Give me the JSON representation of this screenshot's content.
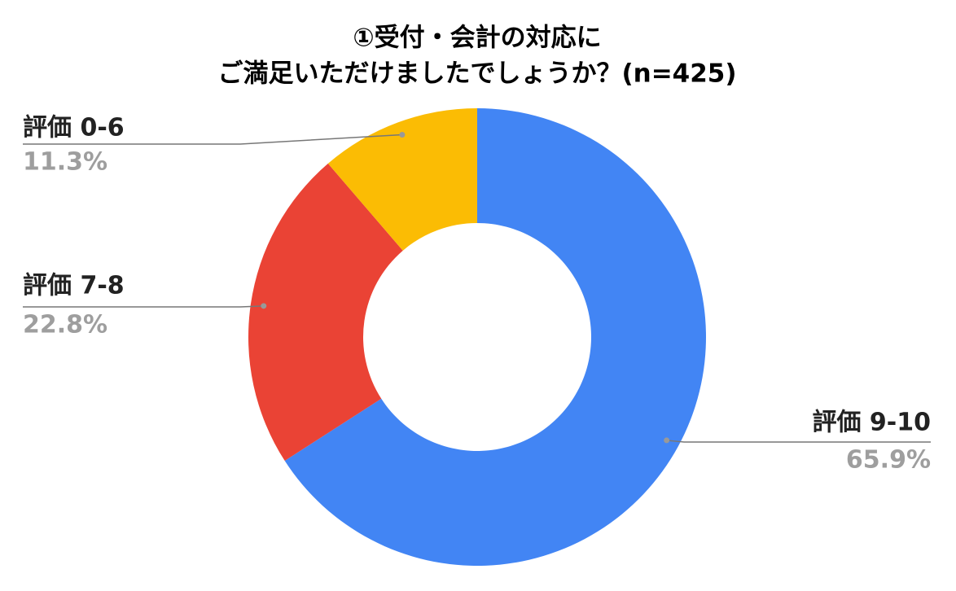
{
  "chart_data": {
    "type": "donut",
    "title": [
      "①受付・会計の対応に",
      "ご満足いただけましたでしょうか？(n=425)"
    ],
    "categories": [
      "評価 9-10",
      "評価 7-8",
      "評価 0-6"
    ],
    "values": [
      65.9,
      22.8,
      11.3
    ],
    "value_labels": [
      "65.9%",
      "22.8%",
      "11.3%"
    ],
    "colors": [
      "#4285f4",
      "#ea4335",
      "#fbbc04"
    ]
  }
}
